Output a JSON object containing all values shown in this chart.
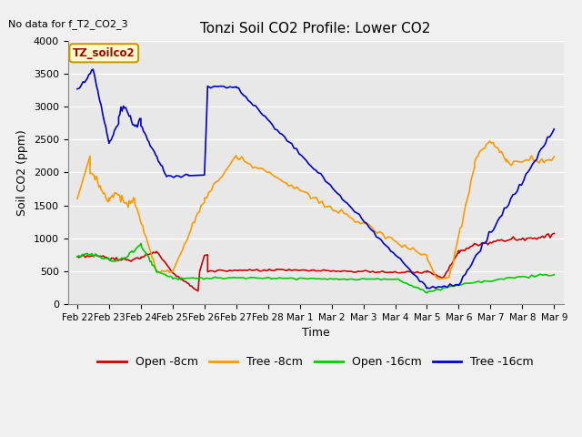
{
  "title": "Tonzi Soil CO2 Profile: Lower CO2",
  "no_data_text": "No data for f_T2_CO2_3",
  "legend_label_text": "TZ_soilco2",
  "xlabel": "Time",
  "ylabel": "Soil CO2 (ppm)",
  "ylim": [
    0,
    4000
  ],
  "background_color": "#f0f0f0",
  "plot_bg_color": "#e8e8e8",
  "grid_color": "#ffffff",
  "series": {
    "open_8cm": {
      "color": "#cc0000",
      "label": "Open -8cm"
    },
    "tree_8cm": {
      "color": "#ff9900",
      "label": "Tree -8cm"
    },
    "open_16cm": {
      "color": "#00cc00",
      "label": "Open -16cm"
    },
    "tree_16cm": {
      "color": "#0000cc",
      "label": "Tree -16cm"
    }
  },
  "xtick_labels": [
    "Feb 22",
    "Feb 23",
    "Feb 24",
    "Feb 25",
    "Feb 26",
    "Feb 27",
    "Feb 28",
    "Mar 1",
    "Mar 2",
    "Mar 3",
    "Mar 4",
    "Mar 5",
    "Mar 6",
    "Mar 7",
    "Mar 8",
    "Mar 9"
  ],
  "ytick_values": [
    0,
    500,
    1000,
    1500,
    2000,
    2500,
    3000,
    3500,
    4000
  ],
  "figsize": [
    6.4,
    4.8
  ],
  "dpi": 100
}
